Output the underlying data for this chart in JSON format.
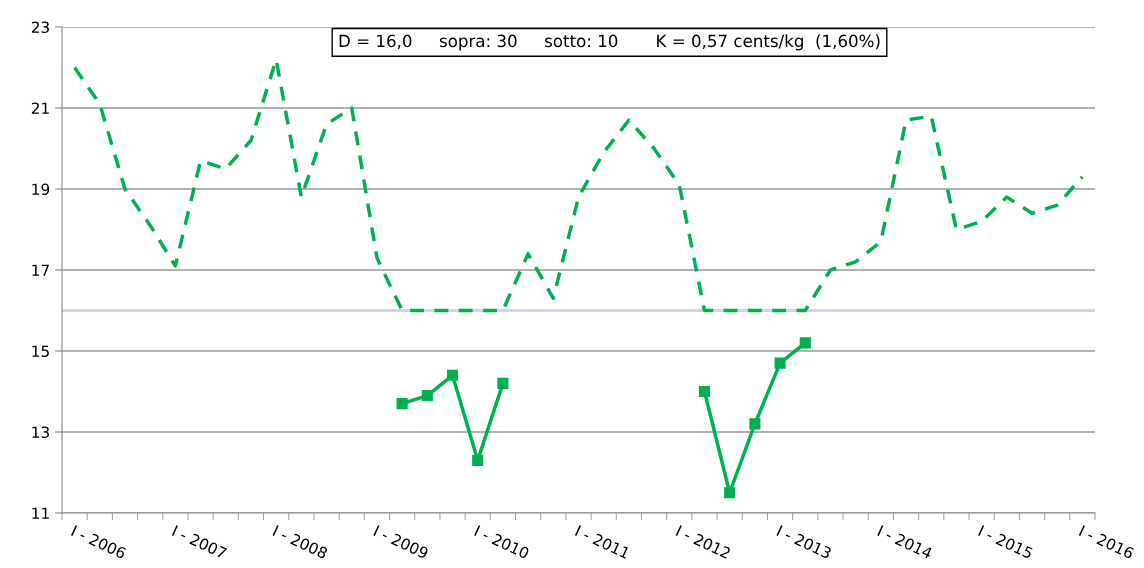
{
  "chart_data": {
    "type": "line",
    "categories": [
      "I - 2006",
      null,
      null,
      null,
      "I - 2007",
      null,
      null,
      null,
      "I - 2008",
      null,
      null,
      null,
      "I - 2009",
      null,
      null,
      null,
      "I - 2010",
      null,
      null,
      null,
      "I - 2011",
      null,
      null,
      null,
      "I - 2012",
      null,
      null,
      null,
      "I - 2013",
      null,
      null,
      null,
      "I - 2014",
      null,
      null,
      null,
      "I - 2015",
      null,
      null,
      null,
      "I - 2016"
    ],
    "series": [
      {
        "color": "#00b050",
        "line_style": "dashed",
        "marker": "none",
        "values": [
          22.0,
          21.1,
          19.0,
          18.1,
          17.1,
          19.7,
          19.5,
          20.2,
          22.2,
          18.8,
          20.6,
          21.0,
          17.3,
          16.0,
          16.0,
          16.0,
          16.0,
          16.0,
          17.4,
          16.3,
          18.8,
          19.9,
          20.7,
          20.0,
          19.1,
          16.0,
          16.0,
          16.0,
          16.0,
          16.0,
          17.0,
          17.2,
          17.7,
          20.7,
          20.8,
          18.0,
          18.2,
          18.8,
          18.4,
          18.6,
          19.3
        ]
      },
      {
        "color": "#00b050",
        "line_style": "solid",
        "marker": "square",
        "values": [
          null,
          null,
          null,
          null,
          null,
          null,
          null,
          null,
          null,
          null,
          null,
          null,
          null,
          13.7,
          13.9,
          14.4,
          12.3,
          14.2,
          null,
          null,
          null,
          null,
          null,
          null,
          null,
          14.0,
          11.5,
          13.2,
          14.7,
          15.2,
          null,
          null,
          null,
          null,
          null,
          null,
          null,
          null,
          null,
          null,
          null
        ]
      }
    ],
    "ylim": [
      11,
      23
    ],
    "yticks": [
      11,
      13,
      15,
      17,
      19,
      21,
      23
    ],
    "grid": "y",
    "ref_lines": [
      {
        "axis": "y",
        "value": 16,
        "color": "#d9cfe8",
        "line_style": "solid"
      }
    ],
    "annotations": [
      "D = 16,0     sopra: 30     sotto: 10       K = 0,57 cents/kg  (1,60%)"
    ]
  }
}
